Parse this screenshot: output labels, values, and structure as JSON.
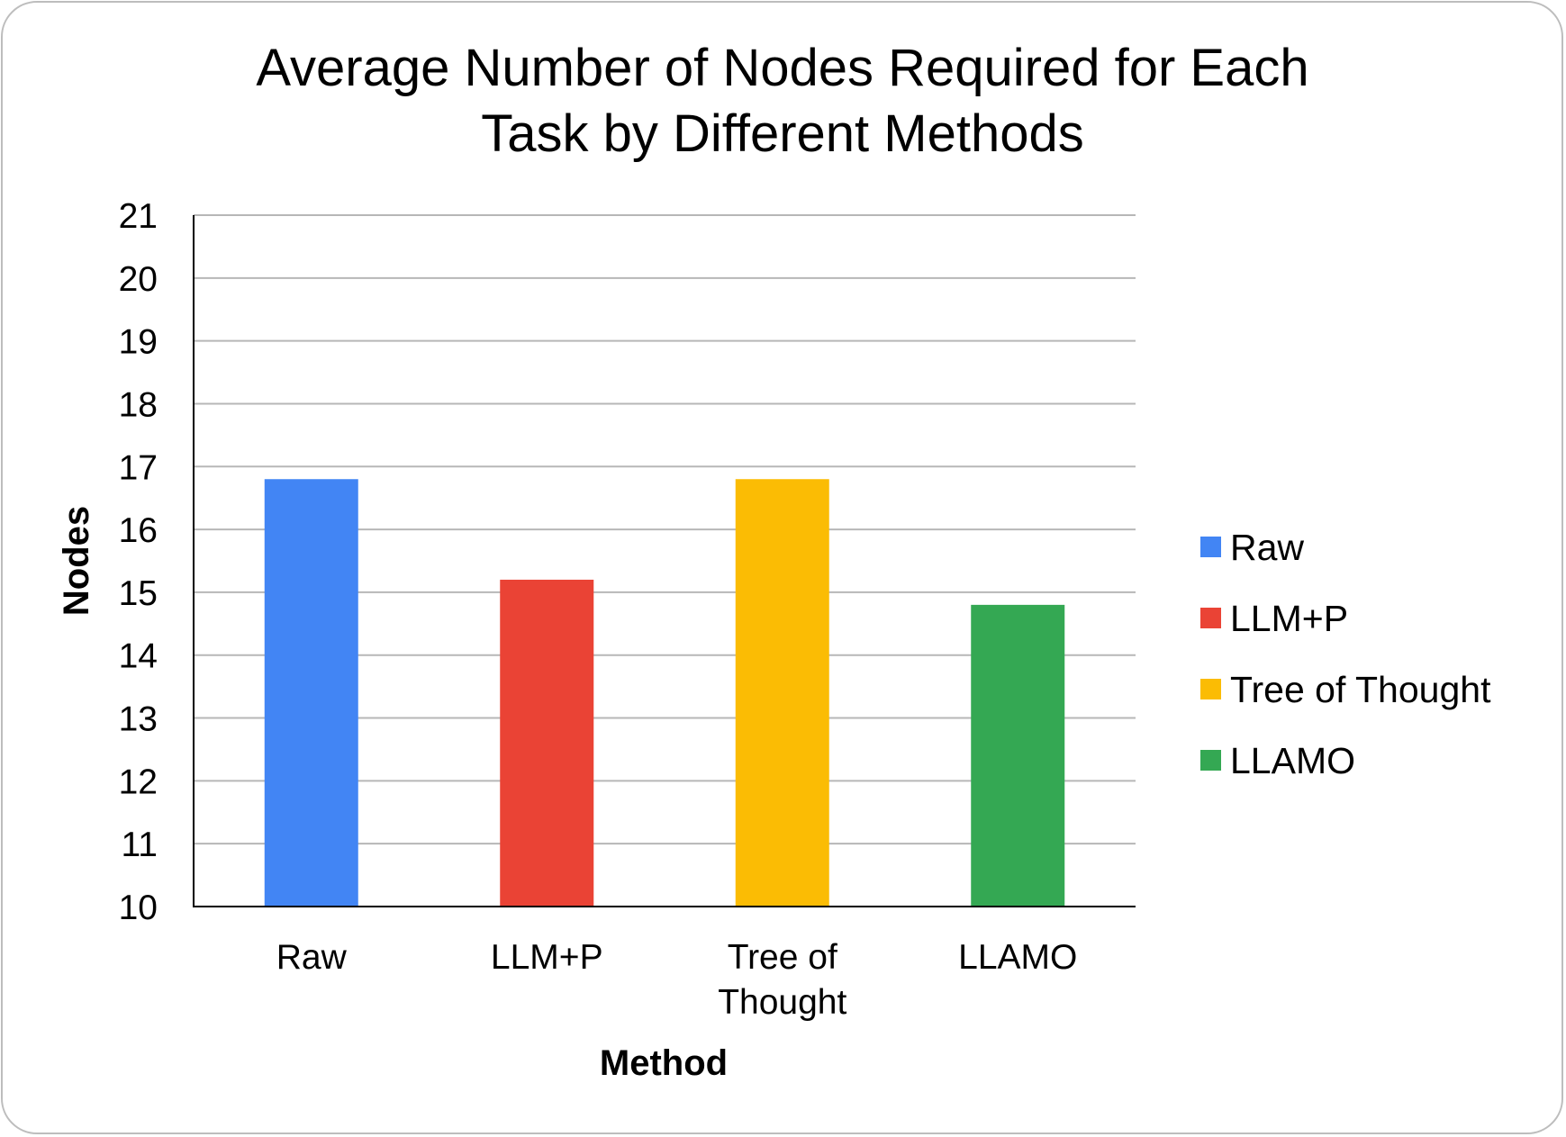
{
  "chart_data": {
    "type": "bar",
    "title": [
      "Average Number of Nodes Required for Each",
      "Task by Different Methods"
    ],
    "xlabel": "Method",
    "ylabel": "Nodes",
    "ylim": [
      10,
      21
    ],
    "yticks": [
      10,
      11,
      12,
      13,
      14,
      15,
      16,
      17,
      18,
      19,
      20,
      21
    ],
    "grid": true,
    "legend_position": "right",
    "categories": [
      {
        "label": [
          "Raw"
        ],
        "value": 16.8,
        "color": "#4285F4"
      },
      {
        "label": [
          "LLM+P"
        ],
        "value": 15.2,
        "color": "#EA4335"
      },
      {
        "label": [
          "Tree of",
          "Thought"
        ],
        "value": 16.8,
        "color": "#FBBC04"
      },
      {
        "label": [
          "LLAMO"
        ],
        "value": 14.8,
        "color": "#34A853"
      }
    ],
    "legend": [
      {
        "name": "Raw",
        "color": "#4285F4"
      },
      {
        "name": "LLM+P",
        "color": "#EA4335"
      },
      {
        "name": "Tree of Thought",
        "color": "#FBBC04"
      },
      {
        "name": "LLAMO",
        "color": "#34A853"
      }
    ]
  }
}
